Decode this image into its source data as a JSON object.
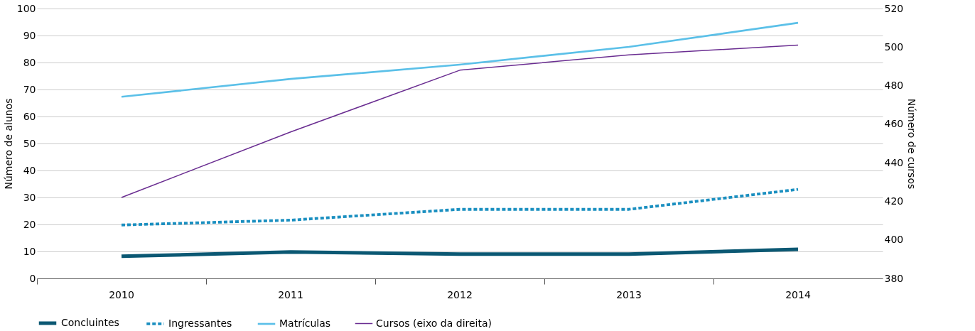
{
  "chart_data": {
    "type": "line",
    "categories": [
      "2010",
      "2011",
      "2012",
      "2013",
      "2014"
    ],
    "ylabel": "Número de alunos",
    "y2label": "Número de cursos",
    "ylim": [
      0,
      100
    ],
    "yticks": [
      0,
      10,
      20,
      30,
      40,
      50,
      60,
      70,
      80,
      90,
      100
    ],
    "y2lim": [
      380,
      520
    ],
    "y2ticks": [
      380,
      400,
      420,
      440,
      460,
      480,
      500,
      520
    ],
    "grid": "y",
    "legend": "bottom",
    "marker": "none",
    "series": [
      {
        "name": "Concluintes",
        "color": "#0b5873",
        "line_style": "solid",
        "values": [
          8.2,
          9.8,
          9.0,
          9.0,
          10.8
        ]
      },
      {
        "name": "Ingressantes",
        "color": "#1a8fc0",
        "line_style": "dashed",
        "values": [
          19.8,
          21.6,
          25.6,
          25.6,
          33.0
        ]
      },
      {
        "name": "Matrículas",
        "color": "#5bc0e8",
        "line_style": "solid",
        "values": [
          67.3,
          73.9,
          79.2,
          85.8,
          94.7
        ]
      },
      {
        "name": "Cursos (eixo da direita)",
        "color": "#6a2d91",
        "line_style": "solid",
        "axis": "y2",
        "values": [
          422,
          456,
          488,
          496,
          501
        ]
      }
    ]
  }
}
